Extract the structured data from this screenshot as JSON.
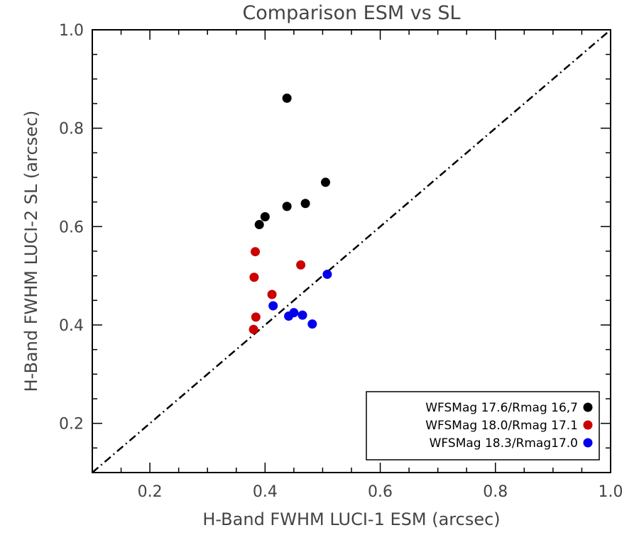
{
  "chart_data": {
    "type": "scatter",
    "title": "Comparison ESM vs SL",
    "xlabel": "H-Band FWHM LUCI-1 ESM (arcsec)",
    "ylabel": "H-Band FWHM LUCI-2 SL (arcsec)",
    "xlim": [
      0.1,
      1.0
    ],
    "ylim": [
      0.1,
      1.0
    ],
    "x_ticks": [
      0.2,
      0.4,
      0.6,
      0.8,
      1.0
    ],
    "y_ticks": [
      0.2,
      0.4,
      0.6,
      0.8,
      1.0
    ],
    "x_tick_labels": [
      "0.2",
      "0.4",
      "0.6",
      "0.8",
      "1.0"
    ],
    "y_tick_labels": [
      "0.2",
      "0.4",
      "0.6",
      "0.8",
      "1.0"
    ],
    "grid": false,
    "legend_position": "bottom-right",
    "reference_line": {
      "style": "dash-dot",
      "color": "#000000",
      "x": [
        0.1,
        1.0
      ],
      "y": [
        0.1,
        1.0
      ]
    },
    "series": [
      {
        "name": "WFSMag 17.6/Rmag 16,7",
        "color": "#000000",
        "points": [
          {
            "x": 0.438,
            "y": 0.861
          },
          {
            "x": 0.505,
            "y": 0.69
          },
          {
            "x": 0.47,
            "y": 0.647
          },
          {
            "x": 0.438,
            "y": 0.641
          },
          {
            "x": 0.4,
            "y": 0.62
          },
          {
            "x": 0.39,
            "y": 0.604
          }
        ]
      },
      {
        "name": "WFSMag 18.0/Rmag 17.1",
        "color": "#cc0000",
        "points": [
          {
            "x": 0.383,
            "y": 0.549
          },
          {
            "x": 0.462,
            "y": 0.522
          },
          {
            "x": 0.381,
            "y": 0.497
          },
          {
            "x": 0.412,
            "y": 0.462
          },
          {
            "x": 0.384,
            "y": 0.416
          },
          {
            "x": 0.38,
            "y": 0.391
          }
        ]
      },
      {
        "name": "WFSMag 18.3/Rmag17.0",
        "color": "#0000ee",
        "points": [
          {
            "x": 0.508,
            "y": 0.503
          },
          {
            "x": 0.414,
            "y": 0.439
          },
          {
            "x": 0.45,
            "y": 0.425
          },
          {
            "x": 0.465,
            "y": 0.42
          },
          {
            "x": 0.441,
            "y": 0.418
          },
          {
            "x": 0.482,
            "y": 0.402
          }
        ]
      }
    ]
  }
}
